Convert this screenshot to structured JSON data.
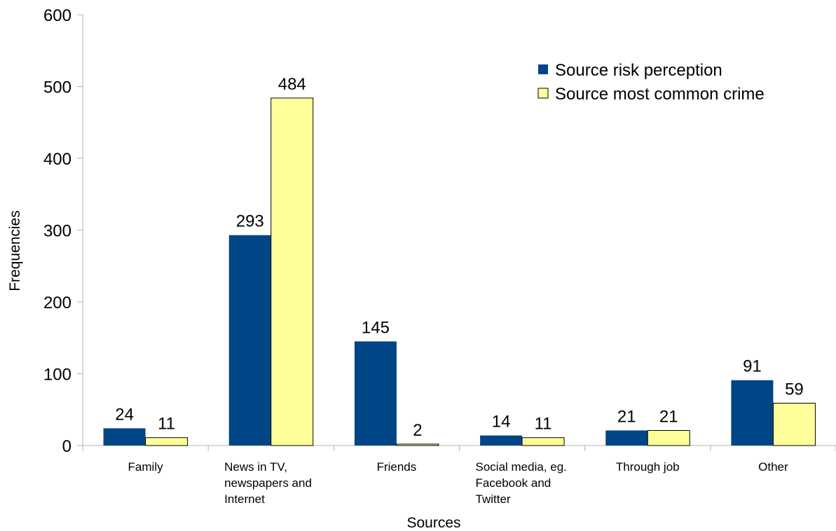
{
  "chart_data": {
    "type": "bar",
    "title": "",
    "xlabel": "Sources",
    "ylabel": "Frequencies",
    "ylim": [
      0,
      600
    ],
    "yticks": [
      0,
      100,
      200,
      300,
      400,
      500,
      600
    ],
    "grid": false,
    "legend_position": "top-right",
    "categories": [
      [
        "Family"
      ],
      [
        "News in TV,",
        "newspapers and",
        "Internet"
      ],
      [
        "Friends"
      ],
      [
        "Social media, eg.",
        "Facebook and",
        "Twitter"
      ],
      [
        "Through job"
      ],
      [
        "Other"
      ]
    ],
    "series": [
      {
        "name": "Source risk perception",
        "color": "#004586",
        "values": [
          24,
          293,
          145,
          14,
          21,
          91
        ]
      },
      {
        "name": "Source most common crime",
        "color": "#ffff99",
        "values": [
          11,
          484,
          2,
          11,
          21,
          59
        ]
      }
    ]
  }
}
